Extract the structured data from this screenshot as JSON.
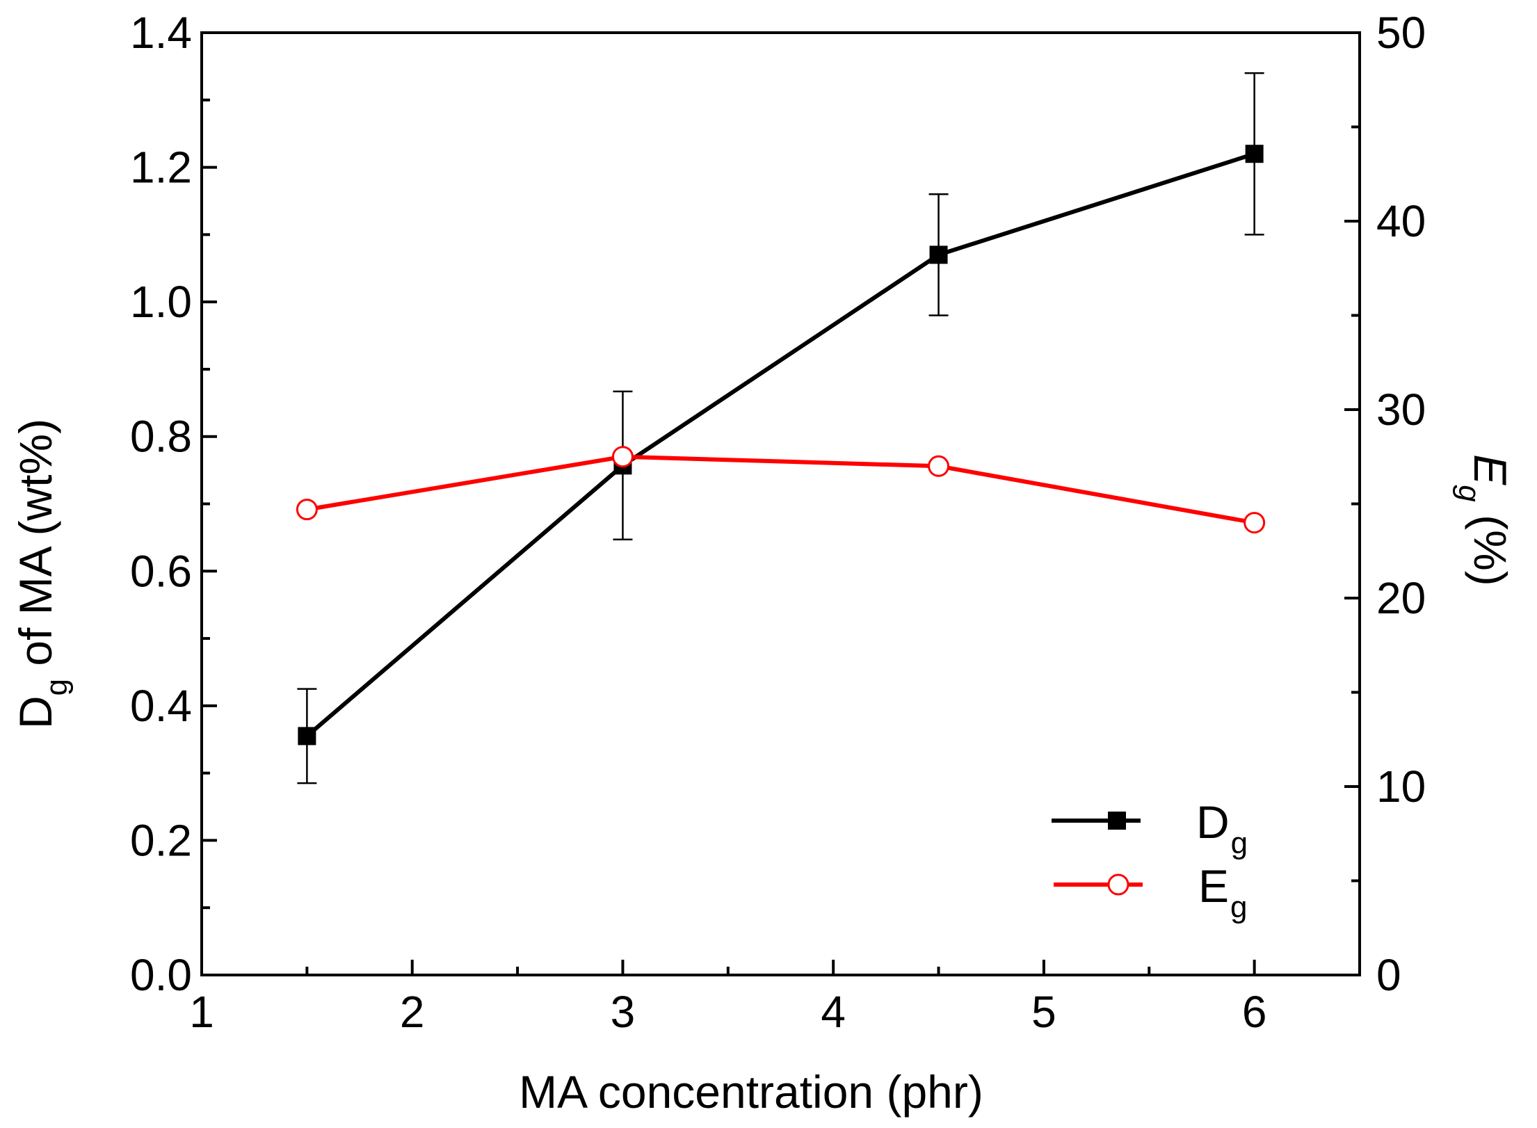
{
  "chart_data": {
    "type": "line",
    "title": "",
    "xlabel": "MA concentration (phr)",
    "ylabel_main": "D",
    "ylabel_sub": "g",
    "ylabel_rest": " of MA (wt%)",
    "y2label_main": "E",
    "y2label_sub": "g",
    "y2label_rest": " (%)",
    "xlim": [
      1,
      6.5
    ],
    "ylim": [
      0,
      1.4
    ],
    "y2lim": [
      0,
      50
    ],
    "xticks": [
      1,
      2,
      3,
      4,
      5,
      6
    ],
    "xtick_labels": [
      "1",
      "2",
      "3",
      "4",
      "5",
      "6"
    ],
    "yticks": [
      0,
      0.2,
      0.4,
      0.6,
      0.8,
      1.0,
      1.2,
      1.4
    ],
    "ytick_labels": [
      "0.0",
      "0.2",
      "0.4",
      "0.6",
      "0.8",
      "1.0",
      "1.2",
      "1.4"
    ],
    "y2ticks": [
      0,
      10,
      20,
      30,
      40,
      50
    ],
    "y2tick_labels": [
      "0",
      "10",
      "20",
      "30",
      "40",
      "50"
    ],
    "grid": false,
    "legend_position": "bottom-right",
    "series": [
      {
        "name": "D",
        "name_sub": "g",
        "axis": "left",
        "color": "#000000",
        "marker": "filled-square",
        "x": [
          1.5,
          3,
          4.5,
          6
        ],
        "values": [
          0.355,
          0.757,
          1.07,
          1.22
        ],
        "error": [
          0.07,
          0.11,
          0.09,
          0.12
        ]
      },
      {
        "name": "E",
        "name_sub": "g",
        "axis": "right",
        "color": "#ff0000",
        "marker": "open-circle",
        "x": [
          1.5,
          3,
          4.5,
          6
        ],
        "values": [
          24.7,
          27.5,
          27.0,
          24.0
        ]
      }
    ]
  }
}
